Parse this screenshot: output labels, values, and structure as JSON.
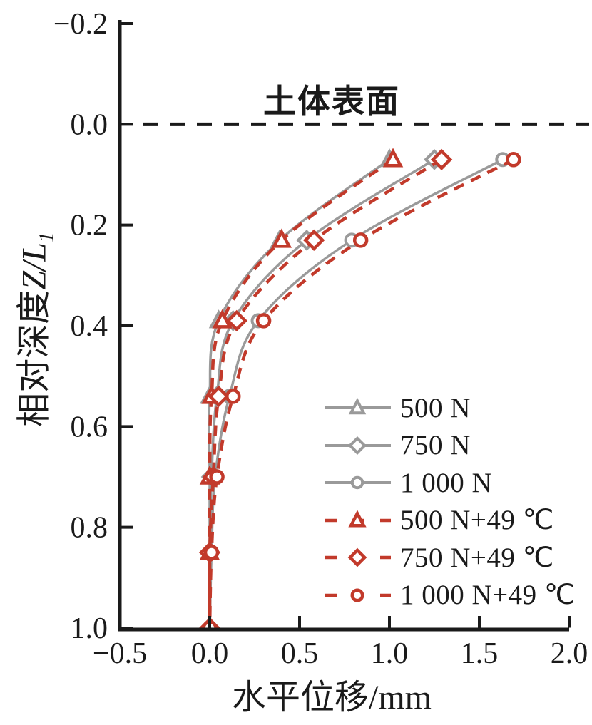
{
  "chart_data": {
    "type": "line",
    "title": "",
    "xlabel": "水平位移/mm",
    "ylabel": {
      "prefix": "相对深度",
      "variable": "Z/L",
      "subscript": "1"
    },
    "surface_label": "土体表面",
    "surface_line_y": 0.0,
    "xlim": [
      -0.5,
      2.0
    ],
    "ylim": [
      -0.2,
      1.0
    ],
    "y_axis_inverted": true,
    "grid": false,
    "legend_position": "inside-lower-right",
    "xticks": {
      "values": [
        -0.5,
        0.0,
        0.5,
        1.0,
        1.5,
        2.0
      ],
      "labels": [
        "−0.5",
        "0.0",
        "0.5",
        "1.0",
        "1.5",
        "2.0"
      ]
    },
    "yticks": {
      "values": [
        -0.2,
        0.0,
        0.2,
        0.4,
        0.6,
        0.8,
        1.0
      ],
      "labels": [
        "−0.2",
        "0.0",
        "0.2",
        "0.4",
        "0.6",
        "0.8",
        "1.0"
      ]
    },
    "depths": [
      0.07,
      0.23,
      0.39,
      0.54,
      0.7,
      0.85,
      1.0
    ],
    "series": [
      {
        "name": "500 N",
        "style": "solid",
        "marker": "triangle",
        "color": "#9a9a9a",
        "x": [
          1.0,
          0.39,
          0.05,
          0.0,
          0.0,
          0.0,
          0.0
        ]
      },
      {
        "name": "750 N",
        "style": "solid",
        "marker": "diamond",
        "color": "#9a9a9a",
        "x": [
          1.25,
          0.54,
          0.13,
          0.04,
          0.01,
          0.0,
          0.0
        ]
      },
      {
        "name": "1 000 N",
        "style": "solid",
        "marker": "circle",
        "color": "#9a9a9a",
        "x": [
          1.63,
          0.79,
          0.27,
          0.11,
          0.03,
          0.01,
          0.0
        ]
      },
      {
        "name": "500 N+49 ℃",
        "style": "dashed",
        "marker": "triangle",
        "color": "#c23a2b",
        "x": [
          1.02,
          0.4,
          0.07,
          0.01,
          0.0,
          0.0,
          0.0
        ]
      },
      {
        "name": "750 N+49 ℃",
        "style": "dashed",
        "marker": "diamond",
        "color": "#c23a2b",
        "x": [
          1.29,
          0.58,
          0.15,
          0.05,
          0.02,
          0.0,
          0.0
        ]
      },
      {
        "name": "1 000 N+49 ℃",
        "style": "dashed",
        "marker": "circle",
        "color": "#c23a2b",
        "x": [
          1.69,
          0.84,
          0.3,
          0.13,
          0.04,
          0.01,
          0.0
        ]
      }
    ],
    "colors": {
      "solid_series": "#9a9a9a",
      "dashed_series": "#c23a2b",
      "axis": "#1a1a1a",
      "surface_line": "#1a1a1a",
      "background": "#ffffff"
    }
  }
}
